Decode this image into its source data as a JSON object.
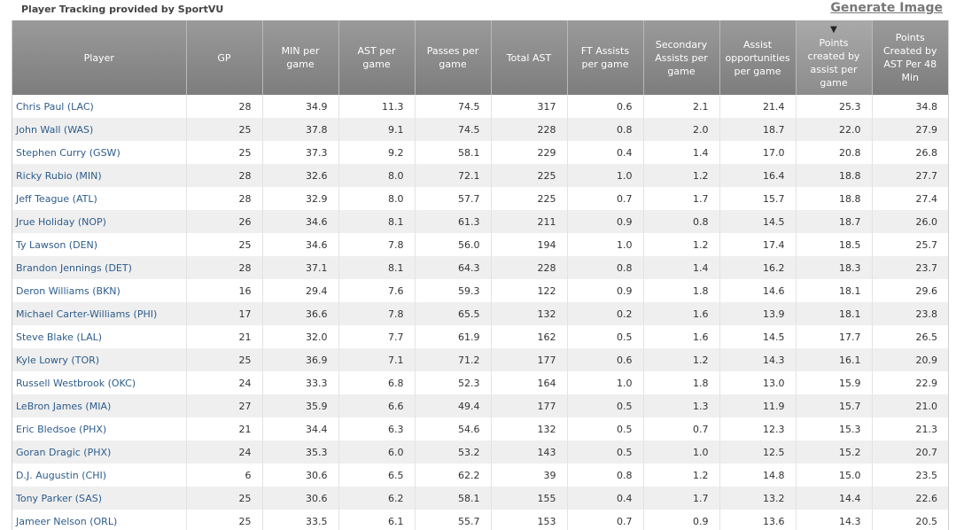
{
  "header": {
    "credit": "Player Tracking provided by SportVU",
    "generate_label": "Generate Image"
  },
  "sort_indicator": "▼",
  "columns": [
    "Player",
    "GP",
    "MIN per game",
    "AST per game",
    "Passes per game",
    "Total AST",
    "FT Assists per game",
    "Secondary Assists per game",
    "Assist opportunities per game",
    "Points created by assist per game",
    "Points Created by AST Per 48 Min"
  ],
  "rows": [
    [
      "Chris Paul (LAC)",
      "28",
      "34.9",
      "11.3",
      "74.5",
      "317",
      "0.6",
      "2.1",
      "21.4",
      "25.3",
      "34.8"
    ],
    [
      "John Wall (WAS)",
      "25",
      "37.8",
      "9.1",
      "74.5",
      "228",
      "0.8",
      "2.0",
      "18.7",
      "22.0",
      "27.9"
    ],
    [
      "Stephen Curry (GSW)",
      "25",
      "37.3",
      "9.2",
      "58.1",
      "229",
      "0.4",
      "1.4",
      "17.0",
      "20.8",
      "26.8"
    ],
    [
      "Ricky Rubio (MIN)",
      "28",
      "32.6",
      "8.0",
      "72.1",
      "225",
      "1.0",
      "1.2",
      "16.4",
      "18.8",
      "27.7"
    ],
    [
      "Jeff Teague (ATL)",
      "28",
      "32.9",
      "8.0",
      "57.7",
      "225",
      "0.7",
      "1.7",
      "15.7",
      "18.8",
      "27.4"
    ],
    [
      "Jrue Holiday (NOP)",
      "26",
      "34.6",
      "8.1",
      "61.3",
      "211",
      "0.9",
      "0.8",
      "14.5",
      "18.7",
      "26.0"
    ],
    [
      "Ty Lawson (DEN)",
      "25",
      "34.6",
      "7.8",
      "56.0",
      "194",
      "1.0",
      "1.2",
      "17.4",
      "18.5",
      "25.7"
    ],
    [
      "Brandon Jennings (DET)",
      "28",
      "37.1",
      "8.1",
      "64.3",
      "228",
      "0.8",
      "1.4",
      "16.2",
      "18.3",
      "23.7"
    ],
    [
      "Deron Williams (BKN)",
      "16",
      "29.4",
      "7.6",
      "59.3",
      "122",
      "0.9",
      "1.8",
      "14.6",
      "18.1",
      "29.6"
    ],
    [
      "Michael Carter-Williams (PHI)",
      "17",
      "36.6",
      "7.8",
      "65.5",
      "132",
      "0.2",
      "1.6",
      "13.9",
      "18.1",
      "23.8"
    ],
    [
      "Steve Blake (LAL)",
      "21",
      "32.0",
      "7.7",
      "61.9",
      "162",
      "0.5",
      "1.6",
      "14.5",
      "17.7",
      "26.5"
    ],
    [
      "Kyle Lowry (TOR)",
      "25",
      "36.9",
      "7.1",
      "71.2",
      "177",
      "0.6",
      "1.2",
      "14.3",
      "16.1",
      "20.9"
    ],
    [
      "Russell Westbrook (OKC)",
      "24",
      "33.3",
      "6.8",
      "52.3",
      "164",
      "1.0",
      "1.8",
      "13.0",
      "15.9",
      "22.9"
    ],
    [
      "LeBron James (MIA)",
      "27",
      "35.9",
      "6.6",
      "49.4",
      "177",
      "0.5",
      "1.3",
      "11.9",
      "15.7",
      "21.0"
    ],
    [
      "Eric Bledsoe (PHX)",
      "21",
      "34.4",
      "6.3",
      "54.6",
      "132",
      "0.5",
      "0.7",
      "12.3",
      "15.3",
      "21.3"
    ],
    [
      "Goran Dragic (PHX)",
      "24",
      "35.3",
      "6.0",
      "53.2",
      "143",
      "0.5",
      "1.0",
      "12.5",
      "15.2",
      "20.7"
    ],
    [
      "D.J. Augustin (CHI)",
      "6",
      "30.6",
      "6.5",
      "62.2",
      "39",
      "0.8",
      "1.2",
      "14.8",
      "15.0",
      "23.5"
    ],
    [
      "Tony Parker (SAS)",
      "25",
      "30.6",
      "6.2",
      "58.1",
      "155",
      "0.4",
      "1.7",
      "13.2",
      "14.4",
      "22.6"
    ],
    [
      "Jameer Nelson (ORL)",
      "25",
      "33.5",
      "6.1",
      "55.7",
      "153",
      "0.7",
      "0.9",
      "13.6",
      "14.3",
      "20.5"
    ]
  ]
}
